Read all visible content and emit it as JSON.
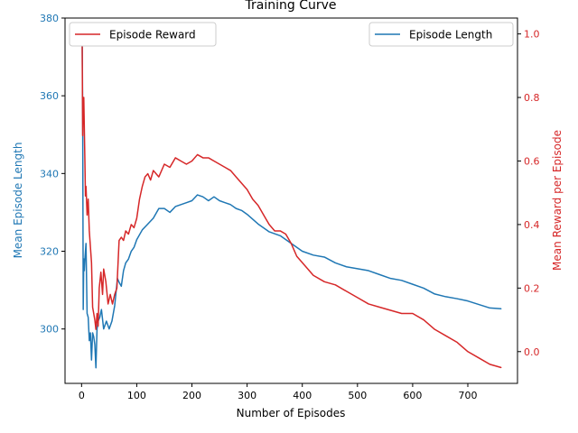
{
  "chart_data": {
    "type": "line",
    "title": "Training Curve",
    "xlabel": "Number of Episodes",
    "ylabel_left": "Mean Episode Length",
    "ylabel_right": "Mean Reward per Episode",
    "xlim": [
      -30,
      790
    ],
    "ylim_left": [
      286,
      380
    ],
    "ylim_right": [
      -0.1,
      1.05
    ],
    "x_ticks": [
      0,
      100,
      200,
      300,
      400,
      500,
      600,
      700
    ],
    "y_left_ticks": [
      300,
      320,
      340,
      360,
      380
    ],
    "y_right_ticks": [
      0.0,
      0.2,
      0.4,
      0.6,
      0.8,
      1.0
    ],
    "x_tick_labels": [
      "0",
      "100",
      "200",
      "300",
      "400",
      "500",
      "600",
      "700"
    ],
    "y_left_tick_labels": [
      "300",
      "320",
      "340",
      "360",
      "380"
    ],
    "y_right_tick_labels": [
      "0.0",
      "0.2",
      "0.4",
      "0.6",
      "0.8",
      "1.0"
    ],
    "grid": false,
    "series": [
      {
        "name": "Episode Length",
        "axis": "left",
        "color": "#1f77b4",
        "legend_position": "upper right",
        "x": [
          1,
          2,
          3,
          4,
          5,
          6,
          8,
          10,
          12,
          14,
          16,
          18,
          20,
          22,
          24,
          26,
          28,
          30,
          33,
          36,
          40,
          45,
          50,
          55,
          60,
          65,
          68,
          72,
          76,
          80,
          85,
          90,
          95,
          100,
          110,
          120,
          130,
          140,
          150,
          160,
          170,
          180,
          190,
          200,
          210,
          220,
          230,
          240,
          250,
          260,
          270,
          280,
          290,
          300,
          320,
          340,
          360,
          380,
          400,
          420,
          440,
          460,
          480,
          500,
          520,
          540,
          560,
          580,
          600,
          620,
          640,
          660,
          680,
          700,
          720,
          740,
          760
        ],
        "values": [
          378,
          355,
          305,
          318,
          315,
          318,
          322,
          304,
          303,
          297,
          299,
          292,
          299,
          298,
          296,
          290,
          300,
          302,
          303,
          305,
          300,
          302,
          300,
          302,
          306,
          313,
          312,
          311,
          315,
          317,
          318,
          320,
          321,
          323,
          325.5,
          327,
          328.5,
          331,
          331,
          330,
          331.5,
          332,
          332.5,
          333,
          334.5,
          334,
          333,
          334,
          333,
          332.5,
          332,
          331,
          330.5,
          329.5,
          327,
          325,
          324,
          322,
          320,
          319,
          318.5,
          317,
          316,
          315.5,
          315,
          314,
          313,
          312.5,
          311.5,
          310.5,
          309,
          308.3,
          307.8,
          307.2,
          306.3,
          305.4,
          305.2
        ]
      },
      {
        "name": "Episode Reward",
        "axis": "right",
        "color": "#d62728",
        "legend_position": "upper left",
        "x": [
          1,
          2,
          3,
          4,
          5,
          6,
          7,
          8,
          10,
          12,
          14,
          16,
          18,
          20,
          22,
          24,
          26,
          28,
          30,
          32,
          35,
          38,
          40,
          44,
          48,
          52,
          56,
          60,
          64,
          68,
          72,
          76,
          80,
          85,
          90,
          95,
          100,
          105,
          110,
          115,
          120,
          125,
          130,
          140,
          150,
          160,
          170,
          180,
          190,
          200,
          210,
          220,
          230,
          240,
          250,
          260,
          270,
          280,
          290,
          300,
          310,
          320,
          330,
          340,
          350,
          360,
          370,
          380,
          390,
          400,
          420,
          440,
          460,
          480,
          500,
          520,
          540,
          560,
          580,
          600,
          620,
          640,
          660,
          680,
          700,
          720,
          740,
          760
        ],
        "values": [
          1.0,
          0.68,
          0.78,
          0.8,
          0.7,
          0.6,
          0.49,
          0.52,
          0.43,
          0.48,
          0.38,
          0.33,
          0.28,
          0.14,
          0.12,
          0.1,
          0.07,
          0.12,
          0.08,
          0.2,
          0.25,
          0.18,
          0.26,
          0.22,
          0.15,
          0.18,
          0.15,
          0.18,
          0.2,
          0.35,
          0.36,
          0.35,
          0.38,
          0.37,
          0.4,
          0.39,
          0.42,
          0.48,
          0.52,
          0.55,
          0.56,
          0.54,
          0.57,
          0.55,
          0.59,
          0.58,
          0.61,
          0.6,
          0.59,
          0.6,
          0.62,
          0.61,
          0.61,
          0.6,
          0.59,
          0.58,
          0.57,
          0.55,
          0.53,
          0.51,
          0.48,
          0.46,
          0.43,
          0.4,
          0.38,
          0.38,
          0.37,
          0.34,
          0.3,
          0.28,
          0.24,
          0.22,
          0.21,
          0.19,
          0.17,
          0.15,
          0.14,
          0.13,
          0.12,
          0.12,
          0.1,
          0.07,
          0.05,
          0.03,
          0.0,
          -0.02,
          -0.04,
          -0.05
        ]
      }
    ]
  }
}
